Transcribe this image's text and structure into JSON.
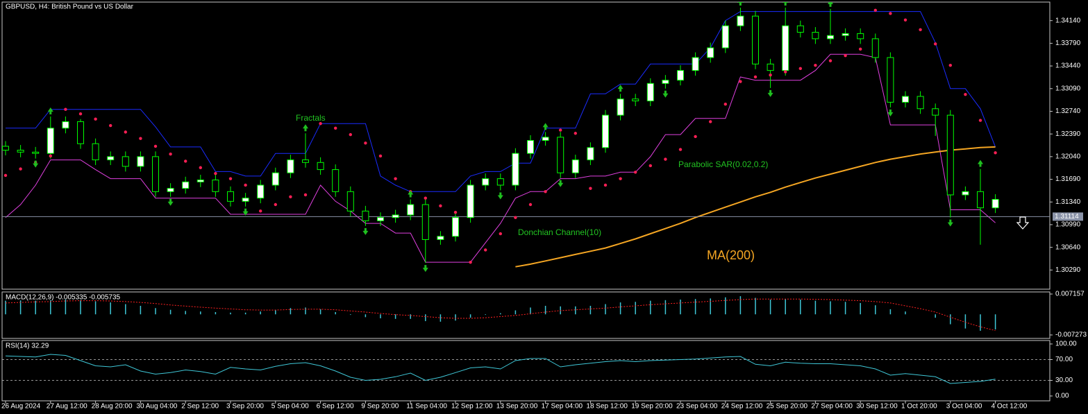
{
  "chart_data": [
    {
      "type": "candlestick",
      "title": "GBPUSD, H4:  British Pound vs US Dollar",
      "categories": [
        "26 Aug 2024",
        null,
        null,
        "27 Aug 12:00",
        null,
        null,
        "28 Aug 20:00",
        null,
        null,
        "30 Aug 04:00",
        null,
        null,
        "2 Sep 12:00",
        null,
        null,
        "3 Sep 20:00",
        null,
        null,
        "5 Sep 04:00",
        null,
        null,
        "6 Sep 12:00",
        null,
        null,
        "9 Sep 20:00",
        null,
        null,
        "11 Sep 04:00",
        null,
        null,
        "12 Sep 12:00",
        null,
        null,
        "13 Sep 20:00",
        null,
        null,
        "17 Sep 04:00",
        null,
        null,
        "18 Sep 12:00",
        null,
        null,
        "19 Sep 20:00",
        null,
        null,
        "23 Sep 04:00",
        null,
        null,
        "24 Sep 12:00",
        null,
        null,
        "25 Sep 20:00",
        null,
        null,
        "27 Sep 04:00",
        null,
        null,
        "30 Sep 12:00",
        null,
        null,
        "1 Oct 20:00",
        null,
        null,
        "3 Oct 04:00",
        null,
        null,
        "4 Oct 12:00"
      ],
      "open": [
        1.322,
        1.3214,
        1.3211,
        1.3209,
        1.3248,
        1.3258,
        1.3224,
        1.3199,
        1.3204,
        1.3189,
        1.3204,
        1.315,
        1.3155,
        1.3165,
        1.3168,
        1.315,
        1.3135,
        1.314,
        1.316,
        1.3179,
        1.3199,
        1.3195,
        1.3184,
        1.315,
        1.312,
        1.3105,
        1.311,
        1.3114,
        1.313,
        1.3076,
        1.3081,
        1.311,
        1.316,
        1.317,
        1.316,
        1.3209,
        1.3229,
        1.3234,
        1.3179,
        1.3199,
        1.3218,
        1.3268,
        1.3293,
        1.329,
        1.3317,
        1.3322,
        1.3337,
        1.3357,
        1.3372,
        1.3406,
        1.3421,
        1.3347,
        1.3337,
        1.3406,
        1.3396,
        1.3386,
        1.3391,
        1.3394,
        1.3386,
        1.3357,
        1.3288,
        1.3297,
        1.3278,
        1.3268,
        1.3145,
        1.315,
        1.3125
      ],
      "high": [
        1.3228,
        1.3222,
        1.3219,
        1.3266,
        1.3266,
        1.3262,
        1.3232,
        1.3212,
        1.3212,
        1.3212,
        1.3212,
        1.3163,
        1.3173,
        1.3176,
        1.3176,
        1.3158,
        1.3148,
        1.3168,
        1.3187,
        1.3207,
        1.324,
        1.3203,
        1.3192,
        1.3158,
        1.3128,
        1.3118,
        1.3122,
        1.3138,
        1.3138,
        1.3089,
        1.3118,
        1.3168,
        1.3178,
        1.3178,
        1.3217,
        1.3237,
        1.3242,
        1.3242,
        1.3207,
        1.3226,
        1.3276,
        1.3301,
        1.3301,
        1.3325,
        1.333,
        1.3345,
        1.3365,
        1.338,
        1.3414,
        1.3434,
        1.3429,
        1.3355,
        1.3434,
        1.3414,
        1.3404,
        1.3432,
        1.3402,
        1.3402,
        1.3394,
        1.3365,
        1.3305,
        1.3305,
        1.3286,
        1.3276,
        1.3158,
        1.3185,
        1.3146
      ],
      "low": [
        1.3206,
        1.3203,
        1.3201,
        1.3201,
        1.324,
        1.3216,
        1.3191,
        1.3191,
        1.3181,
        1.3181,
        1.3142,
        1.3142,
        1.3147,
        1.3157,
        1.3142,
        1.3127,
        1.3127,
        1.3132,
        1.3152,
        1.3171,
        1.3187,
        1.3176,
        1.3142,
        1.3112,
        1.3097,
        1.3097,
        1.3102,
        1.3106,
        1.304,
        1.3068,
        1.3073,
        1.3102,
        1.3152,
        1.3152,
        1.3152,
        1.3201,
        1.3221,
        1.3171,
        1.3171,
        1.3191,
        1.321,
        1.326,
        1.3282,
        1.3282,
        1.3309,
        1.3314,
        1.3329,
        1.3349,
        1.3364,
        1.3398,
        1.3339,
        1.331,
        1.3329,
        1.3388,
        1.3378,
        1.3378,
        1.3383,
        1.3378,
        1.3349,
        1.328,
        1.328,
        1.327,
        1.3236,
        1.311,
        1.3137,
        1.3068,
        1.3117
      ],
      "close": [
        1.3214,
        1.3211,
        1.3209,
        1.3248,
        1.3258,
        1.3224,
        1.3199,
        1.3204,
        1.3189,
        1.3204,
        1.315,
        1.3155,
        1.3165,
        1.3168,
        1.315,
        1.3135,
        1.314,
        1.316,
        1.3179,
        1.3199,
        1.3195,
        1.3184,
        1.315,
        1.312,
        1.3105,
        1.311,
        1.3114,
        1.313,
        1.3076,
        1.3081,
        1.311,
        1.316,
        1.317,
        1.316,
        1.3209,
        1.3229,
        1.3234,
        1.3179,
        1.3199,
        1.3218,
        1.3268,
        1.3293,
        1.329,
        1.3317,
        1.3322,
        1.3337,
        1.3357,
        1.3372,
        1.3406,
        1.3421,
        1.3347,
        1.3337,
        1.3406,
        1.3396,
        1.3386,
        1.3391,
        1.3394,
        1.3386,
        1.3357,
        1.3288,
        1.3297,
        1.3278,
        1.3268,
        1.3145,
        1.315,
        1.3125,
        1.3138
      ],
      "up_color": "#ffffff",
      "down_color": "#000000",
      "wick_color": "#00ff00",
      "ylim": [
        1.29994,
        1.34426
      ],
      "yticks": [
        {
          "value": 1.3029,
          "label": "1.30290"
        },
        {
          "value": 1.3064,
          "label": "1.30640"
        },
        {
          "value": 1.3099,
          "label": "1.30990"
        },
        {
          "value": 1.3134,
          "label": "1.31340"
        },
        {
          "value": 1.3169,
          "label": "1.31690"
        },
        {
          "value": 1.3204,
          "label": "1.32040"
        },
        {
          "value": 1.3239,
          "label": "1.32390"
        },
        {
          "value": 1.3274,
          "label": "1.32740"
        },
        {
          "value": 1.3309,
          "label": "1.33090"
        },
        {
          "value": 1.3344,
          "label": "1.33440"
        },
        {
          "value": 1.3379,
          "label": "1.33790"
        },
        {
          "value": 1.3414,
          "label": "1.34140"
        }
      ],
      "last_price": 1.31114,
      "last_price_color": "#8a93a8",
      "ma": {
        "label": "MA(200)",
        "color": "#f5a623",
        "values": [
          null,
          null,
          null,
          null,
          null,
          null,
          null,
          null,
          null,
          null,
          null,
          null,
          null,
          null,
          null,
          null,
          null,
          null,
          null,
          null,
          null,
          null,
          null,
          null,
          null,
          null,
          null,
          null,
          null,
          null,
          null,
          null,
          null,
          null,
          1.3034,
          1.3038,
          1.3043,
          1.3048,
          1.3053,
          1.3058,
          1.3063,
          1.307,
          1.3077,
          1.3085,
          1.3093,
          1.3101,
          1.311,
          1.3118,
          1.3126,
          1.3134,
          1.3142,
          1.3149,
          1.3157,
          1.3164,
          1.3171,
          1.3177,
          1.3183,
          1.3189,
          1.3195,
          1.32,
          1.3204,
          1.3208,
          1.3211,
          1.3214,
          1.3216,
          1.3218,
          1.3219
        ]
      },
      "sar": {
        "label": "Parabolic SAR(0.02,0.2)",
        "color": "#ff1f55",
        "values": [
          1.3175,
          1.3185,
          1.3195,
          1.3205,
          1.3277,
          1.327,
          1.3262,
          1.3252,
          1.3242,
          1.3232,
          1.322,
          1.3208,
          1.3197,
          1.3187,
          1.3178,
          1.317,
          1.316,
          1.312,
          1.313,
          1.3142,
          1.3145,
          1.3255,
          1.3248,
          1.3238,
          1.3225,
          1.3205,
          1.317,
          1.315,
          1.314,
          1.3128,
          1.3118,
          1.3041,
          1.306,
          1.3085,
          1.311,
          1.313,
          1.315,
          1.3245,
          1.324,
          1.3155,
          1.316,
          1.317,
          1.318,
          1.319,
          1.32,
          1.3215,
          1.3235,
          1.3258,
          1.3285,
          1.332,
          1.3327,
          1.333,
          1.3335,
          1.334,
          1.3345,
          1.3352,
          1.336,
          1.337,
          1.343,
          1.3425,
          1.3415,
          1.34,
          1.3378,
          1.3345,
          1.33,
          1.326,
          1.321
        ]
      },
      "donchian": {
        "label": "Donchian Channel(10)",
        "upper": {
          "color": "#1a2cff",
          "values": [
            1.3248,
            1.3248,
            1.3248,
            1.3277,
            1.3277,
            1.3277,
            1.3277,
            1.3277,
            1.3277,
            1.3277,
            1.325,
            1.3219,
            1.3219,
            1.3219,
            1.3181,
            1.3181,
            1.3174,
            1.3174,
            1.3209,
            1.3209,
            1.3209,
            1.3255,
            1.3255,
            1.3255,
            1.3255,
            1.3174,
            1.316,
            1.315,
            1.315,
            1.315,
            1.315,
            1.3174,
            1.3181,
            1.3181,
            1.3194,
            1.3194,
            1.3248,
            1.3248,
            1.3248,
            1.3301,
            1.3301,
            1.3316,
            1.3316,
            1.3347,
            1.3347,
            1.3347,
            1.3347,
            1.3372,
            1.3414,
            1.3428,
            1.3428,
            1.3428,
            1.3428,
            1.3428,
            1.3428,
            1.3428,
            1.3428,
            1.3428,
            1.3428,
            1.3428,
            1.3428,
            1.3428,
            1.338,
            1.3309,
            1.3309,
            1.3278,
            1.3219
          ]
        },
        "lower": {
          "color": "#e040e0",
          "values": [
            1.311,
            1.313,
            1.316,
            1.3199,
            1.3199,
            1.3199,
            1.3184,
            1.317,
            1.317,
            1.317,
            1.314,
            1.314,
            1.314,
            1.314,
            1.314,
            1.3115,
            1.3115,
            1.3115,
            1.3115,
            1.3115,
            1.3115,
            1.316,
            1.3135,
            1.312,
            1.3101,
            1.3101,
            1.3086,
            1.3086,
            1.3041,
            1.3041,
            1.3041,
            1.3041,
            1.3071,
            1.3101,
            1.314,
            1.315,
            1.315,
            1.317,
            1.317,
            1.3174,
            1.3174,
            1.318,
            1.318,
            1.3204,
            1.3238,
            1.3238,
            1.3263,
            1.3263,
            1.3263,
            1.3327,
            1.3322,
            1.3322,
            1.3322,
            1.3322,
            1.3337,
            1.3362,
            1.3362,
            1.3362,
            1.3357,
            1.3253,
            1.3253,
            1.3253,
            1.3253,
            1.3122,
            1.3122,
            1.3122,
            1.3102
          ]
        }
      },
      "fractals": {
        "label": "Fractals",
        "color": "#1fbf1f",
        "up": [
          null,
          null,
          null,
          1.3266,
          null,
          null,
          null,
          null,
          null,
          null,
          null,
          null,
          null,
          null,
          null,
          null,
          null,
          null,
          null,
          null,
          1.324,
          null,
          null,
          null,
          null,
          null,
          null,
          1.3138,
          null,
          null,
          null,
          null,
          null,
          null,
          null,
          null,
          1.3242,
          null,
          null,
          null,
          null,
          1.3301,
          null,
          null,
          null,
          null,
          null,
          null,
          null,
          1.3434,
          null,
          null,
          1.3434,
          null,
          null,
          1.3432,
          null,
          null,
          null,
          null,
          null,
          null,
          null,
          null,
          null,
          1.3185,
          null
        ],
        "down": [
          null,
          null,
          1.3201,
          null,
          null,
          null,
          null,
          null,
          null,
          null,
          null,
          1.3142,
          null,
          null,
          null,
          null,
          1.3127,
          null,
          null,
          null,
          null,
          null,
          null,
          null,
          1.3097,
          null,
          null,
          null,
          1.304,
          null,
          null,
          null,
          null,
          1.3152,
          null,
          null,
          null,
          1.3171,
          null,
          null,
          null,
          null,
          null,
          null,
          1.3309,
          null,
          null,
          null,
          null,
          null,
          null,
          1.331,
          null,
          null,
          null,
          null,
          null,
          null,
          null,
          1.328,
          null,
          null,
          null,
          1.311,
          null,
          null,
          null
        ]
      }
    },
    {
      "type": "macd",
      "title": "MACD(12,26,9) -0.005335 -0.005735",
      "ylim": [
        -0.007273,
        0.007157
      ],
      "yticks": [
        0.007157,
        -0.007273
      ],
      "histogram": {
        "color": "#3fc8d8",
        "values": [
          0.0048,
          0.0049,
          0.0048,
          0.005,
          0.0052,
          0.005,
          0.0046,
          0.0042,
          0.0036,
          0.003,
          0.0022,
          0.0016,
          0.0012,
          0.001,
          0.0008,
          0.0006,
          0.0006,
          0.001,
          0.0016,
          0.0022,
          0.0024,
          0.0018,
          0.0008,
          -0.0002,
          -0.001,
          -0.0014,
          -0.0016,
          -0.0016,
          -0.0024,
          -0.0026,
          -0.0022,
          -0.0012,
          -0.0002,
          0.0004,
          0.0014,
          0.0024,
          0.003,
          0.0028,
          0.0028,
          0.003,
          0.0036,
          0.0042,
          0.0044,
          0.0048,
          0.005,
          0.0052,
          0.0054,
          0.0056,
          0.006,
          0.0064,
          0.0058,
          0.0052,
          0.0054,
          0.0052,
          0.0048,
          0.0046,
          0.0044,
          0.004,
          0.0032,
          0.0018,
          0.001,
          0.0,
          -0.0012,
          -0.0035,
          -0.005,
          -0.0058,
          -0.005335
        ]
      },
      "signal": {
        "color": "#ff2020",
        "values": [
          0.004,
          0.0042,
          0.0044,
          0.0045,
          0.0047,
          0.0048,
          0.0048,
          0.0047,
          0.0045,
          0.0042,
          0.0038,
          0.0033,
          0.0029,
          0.0025,
          0.0022,
          0.0019,
          0.0016,
          0.0015,
          0.0015,
          0.0017,
          0.0018,
          0.0018,
          0.0016,
          0.0012,
          0.0008,
          0.0003,
          -0.0001,
          -0.0004,
          -0.0008,
          -0.0012,
          -0.0014,
          -0.0014,
          -0.0012,
          -0.0008,
          -0.0004,
          0.0002,
          0.0008,
          0.0013,
          0.0016,
          0.0019,
          0.0022,
          0.0026,
          0.003,
          0.0034,
          0.0037,
          0.004,
          0.0043,
          0.0046,
          0.0049,
          0.0052,
          0.0054,
          0.0054,
          0.0054,
          0.0054,
          0.0053,
          0.0052,
          0.005,
          0.0048,
          0.0045,
          0.004,
          0.003,
          0.002,
          0.0008,
          -0.001,
          -0.0028,
          -0.0044,
          -0.005735
        ]
      }
    },
    {
      "type": "rsi",
      "title": "RSI(14) 32.29",
      "ylim": [
        0,
        100
      ],
      "yticks": [
        {
          "value": 100,
          "label": "100.00"
        },
        {
          "value": 70,
          "label": "70.00"
        },
        {
          "value": 30,
          "label": "30.00"
        },
        {
          "value": 0,
          "label": "0.00"
        }
      ],
      "levels": [
        70,
        30
      ],
      "color": "#3fc8d8",
      "values": [
        77,
        76,
        75,
        80,
        78,
        68,
        58,
        56,
        60,
        48,
        42,
        45,
        50,
        47,
        42,
        55,
        52,
        50,
        57,
        62,
        64,
        58,
        48,
        36,
        30,
        32,
        37,
        44,
        30,
        36,
        45,
        54,
        56,
        52,
        68,
        72,
        72,
        56,
        60,
        63,
        66,
        68,
        66,
        68,
        69,
        70,
        71,
        73,
        75,
        76,
        61,
        58,
        65,
        63,
        62,
        62,
        60,
        58,
        52,
        40,
        43,
        40,
        37,
        24,
        26,
        28,
        32.29
      ]
    }
  ]
}
